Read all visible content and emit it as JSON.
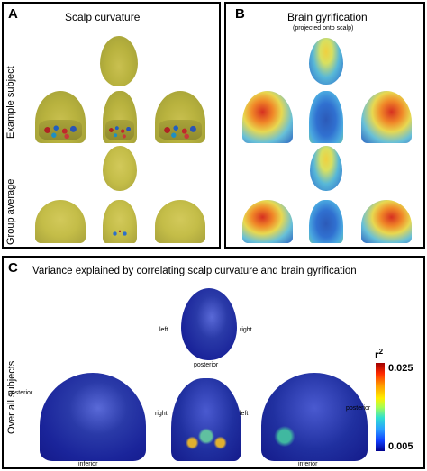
{
  "panels": {
    "a": {
      "letter": "A",
      "title": "Scalp curvature",
      "row_labels": {
        "example": "Example subject",
        "group": "Group average"
      }
    },
    "b": {
      "letter": "B",
      "title": "Brain gyrification",
      "subtitle": "(projected onto scalp)"
    },
    "c": {
      "letter": "C",
      "title": "Variance explained by correlating scalp curvature and brain gyrification",
      "row_label": "Over all subjects",
      "labels": {
        "top_left": "left",
        "top_right": "right",
        "top_bottom": "posterior",
        "left_side": "posterior",
        "left_bottom": "inferior",
        "mid_left": "right",
        "mid_right": "left",
        "right_side": "posterior",
        "right_bottom": "inferior"
      },
      "colorbar": {
        "label": "r",
        "label_sup": "2",
        "max": "0.025",
        "min": "0.005",
        "colors": [
          "#a00000",
          "#ff9800",
          "#ffee00",
          "#30e0d0",
          "#1040ff",
          "#00008c"
        ]
      }
    }
  }
}
